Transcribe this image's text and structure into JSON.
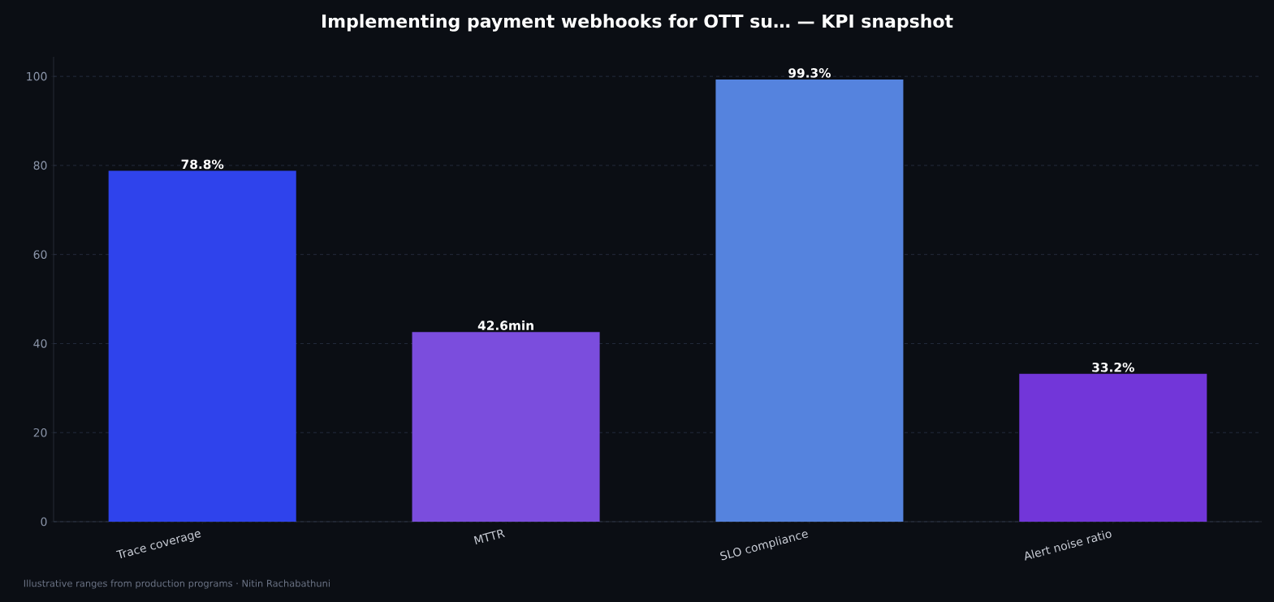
{
  "chart_data": {
    "type": "bar",
    "title": "Implementing payment webhooks for OTT su… — KPI snapshot",
    "categories": [
      "Trace coverage",
      "MTTR",
      "SLO compliance",
      "Alert noise ratio"
    ],
    "values": [
      78.8,
      42.6,
      99.3,
      33.2
    ],
    "colors": [
      "#2f43ec",
      "#7b4ddd",
      "#5583de",
      "#7236d9"
    ],
    "value_labels": [
      "78.8%",
      "42.6min",
      "99.3%",
      "33.2%"
    ],
    "ylim": [
      0,
      104.4
    ],
    "yticks": [
      0,
      20,
      40,
      60,
      80,
      100
    ],
    "grid": "y",
    "annotations": [
      "Illustrative ranges from production programs · Nitin Rachabathuni"
    ]
  }
}
